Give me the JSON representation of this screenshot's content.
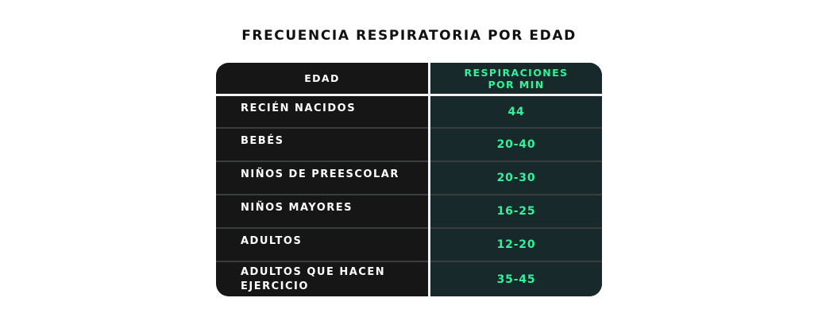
{
  "title": "FRECUENCIA RESPIRATORIA POR EDAD",
  "table": {
    "headers": {
      "age": "EDAD",
      "rate_line1": "RESPIRACIONES",
      "rate_line2": "POR MIN"
    },
    "rows": [
      {
        "age": "RECIÉN NACIDOS",
        "rate": "44"
      },
      {
        "age": "BEBÉS",
        "rate": "20-40"
      },
      {
        "age": "NIÑOS DE PREESCOLAR",
        "rate": "20-30"
      },
      {
        "age": "NIÑOS MAYORES",
        "rate": "16-25"
      },
      {
        "age": "ADULTOS",
        "rate": "12-20"
      },
      {
        "age_line1": "ADULTOS QUE HACEN",
        "age_line2": "EJERCICIO",
        "rate": "35-45"
      }
    ]
  },
  "colors": {
    "left_column": "#161617",
    "right_column": "#17292a",
    "accent": "#32f29a",
    "divider": "#f2f2f2"
  }
}
